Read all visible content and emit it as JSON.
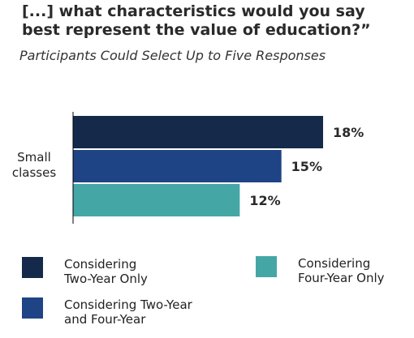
{
  "chart_data": {
    "type": "bar",
    "orientation": "horizontal",
    "title": "[...] what characteristics would you say best represent the value of education?”",
    "subtitle": "Participants Could Select Up to Five Responses",
    "categories": [
      "Small classes"
    ],
    "series": [
      {
        "name": "Considering Two-Year Only",
        "values": [
          18
        ],
        "labels": [
          "18%"
        ],
        "color": "#152a4a"
      },
      {
        "name": "Considering Two-Year and Four-Year",
        "values": [
          15
        ],
        "labels": [
          "15%"
        ],
        "color": "#1f4485"
      },
      {
        "name": "Considering Four-Year Only",
        "values": [
          12
        ],
        "labels": [
          "12%"
        ],
        "color": "#45a6a6"
      }
    ],
    "xlim": [
      0,
      20
    ],
    "grid": false,
    "legend_position": "bottom"
  }
}
